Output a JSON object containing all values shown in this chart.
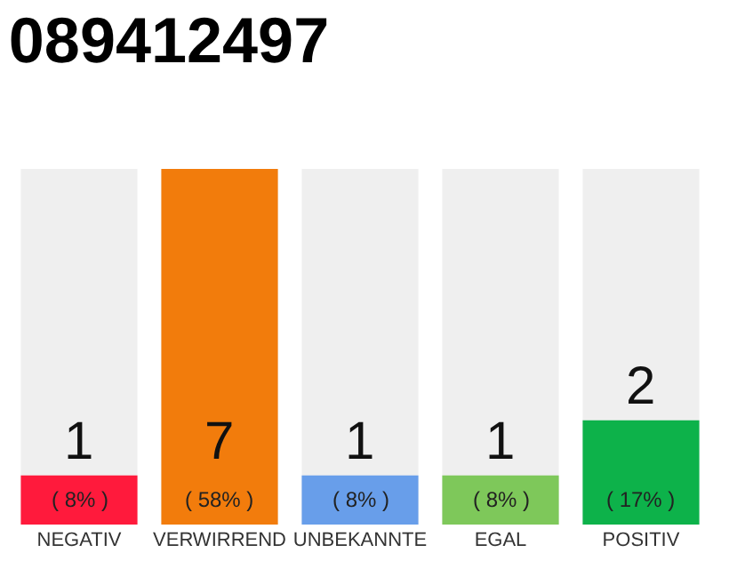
{
  "chart_data": {
    "type": "bar",
    "title": "089412497",
    "categories": [
      "NEGATIV",
      "VERWIRREND",
      "UNBEKANNTE",
      "EGAL",
      "POSITIV"
    ],
    "values": [
      8,
      58,
      8,
      8,
      17
    ],
    "colors": [
      "#ff1a3c",
      "#f27c0c",
      "#689eea",
      "#7ec85a",
      "#0db24a"
    ],
    "tick_labels": "x",
    "value_labels": [
      "( 8% )",
      "( 58% )",
      "( 8% )",
      "( 8% )",
      "( 17% )"
    ],
    "annotations": [
      {
        "text": "1",
        "x": "NEGATIV",
        "y": 8
      },
      "7",
      {
        "text": "1",
        "x": "UNBEKANNTE",
        "y": 8
      },
      {
        "text": "1",
        "x": "EGAL",
        "y": 8
      },
      {
        "text": "2",
        "x": "POSITIV",
        "y": 17
      }
    ]
  }
}
